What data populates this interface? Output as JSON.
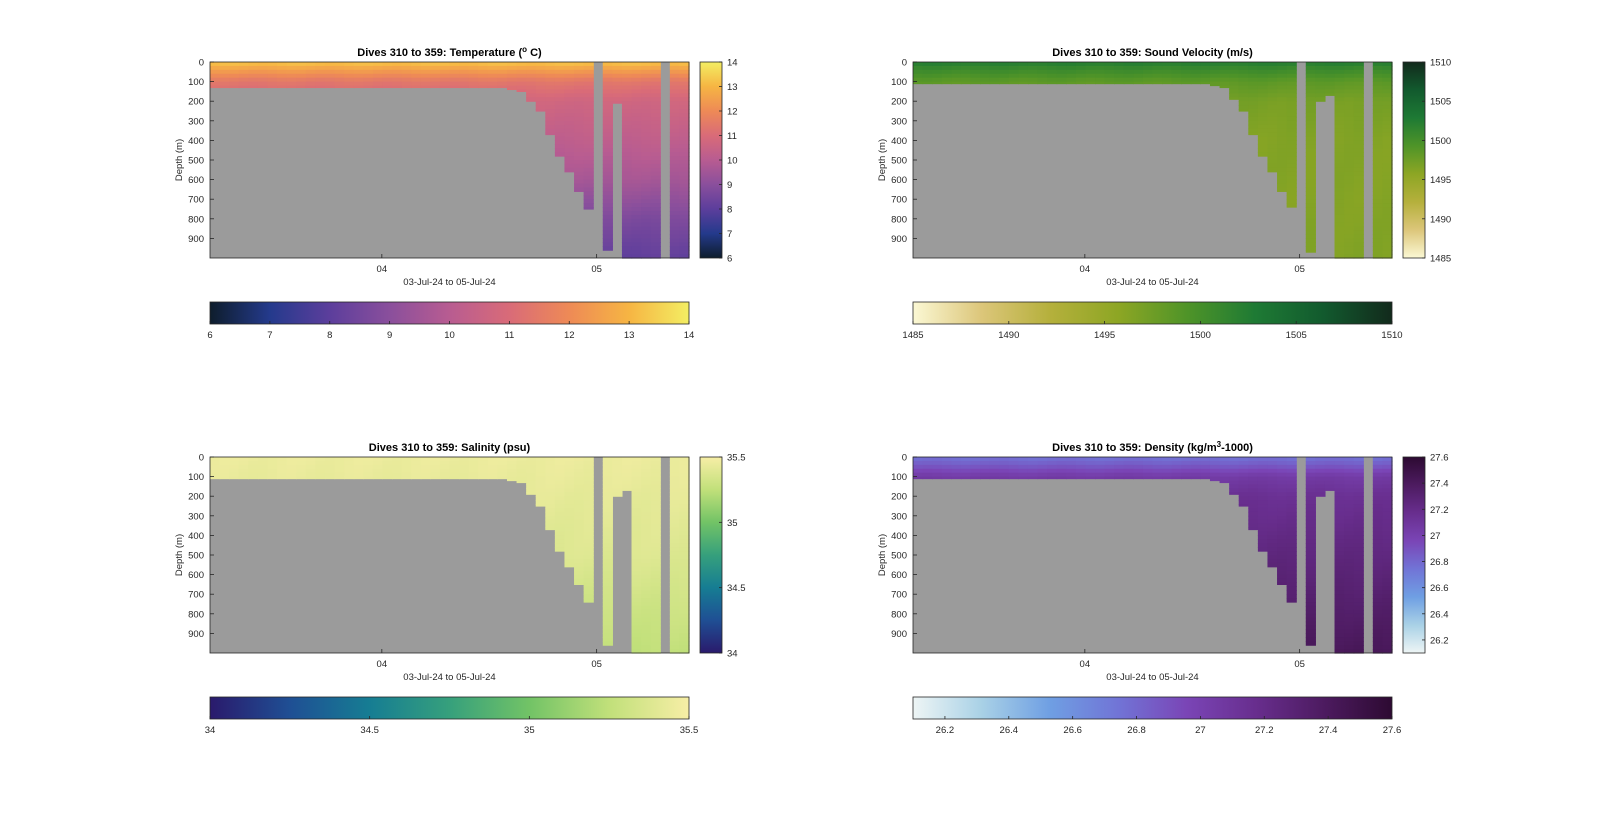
{
  "figure_title": "",
  "no_data_color": "#9b9b9b",
  "chart_data": [
    {
      "type": "heatmap",
      "title": "Dives 310 to 359: Temperature (° C)",
      "title_main": "Dives 310 to 359: Temperature (",
      "title_sup": "o",
      "title_tail": " C)",
      "xlabel": "03-Jul-24 to 05-Jul-24",
      "ylabel": "Depth (m)",
      "ylim": [
        0,
        1000
      ],
      "y_reversed": true,
      "y_ticks": [
        0,
        100,
        200,
        300,
        400,
        500,
        600,
        700,
        800,
        900
      ],
      "x_range_days": [
        3.2,
        5.43
      ],
      "x_ticks": [
        {
          "value": 4.0,
          "label": "04"
        },
        {
          "value": 5.0,
          "label": "05"
        }
      ],
      "n_profiles": 50,
      "max_depth_by_profile": [
        130,
        130,
        130,
        130,
        130,
        130,
        130,
        130,
        130,
        130,
        130,
        130,
        130,
        130,
        130,
        130,
        130,
        130,
        130,
        130,
        130,
        130,
        130,
        130,
        130,
        130,
        130,
        130,
        130,
        130,
        130,
        140,
        150,
        200,
        250,
        370,
        480,
        560,
        660,
        750,
        0,
        960,
        210,
        1000,
        1000,
        1000,
        1000,
        0,
        1000,
        1000
      ],
      "colorbar": {
        "min": 6,
        "max": 14,
        "ticks": [
          6,
          7,
          8,
          9,
          10,
          11,
          12,
          13,
          14
        ],
        "horizontal_ticks": [
          6,
          7,
          8,
          9,
          10,
          11,
          12,
          13,
          14
        ]
      },
      "colormap": [
        "#0e1d2c",
        "#243a8c",
        "#5c3e9c",
        "#8a4f9c",
        "#b85c91",
        "#d96b78",
        "#ee8a56",
        "#f6b543",
        "#f3ee63"
      ],
      "profile": {
        "depths": [
          0,
          40,
          100,
          200,
          400,
          600,
          800,
          1000
        ],
        "values": [
          13.3,
          12.5,
          11.4,
          10.7,
          10.2,
          9.6,
          8.7,
          8.1
        ]
      }
    },
    {
      "type": "heatmap",
      "title": "Dives 310 to 359: Sound Velocity (m/s)",
      "title_main": "Dives 310 to 359: Sound Velocity (m/s)",
      "title_sup": "",
      "title_tail": "",
      "xlabel": "03-Jul-24 to 05-Jul-24",
      "ylabel": "Depth (m)",
      "ylim": [
        0,
        1000
      ],
      "y_reversed": true,
      "y_ticks": [
        0,
        100,
        200,
        300,
        400,
        500,
        600,
        700,
        800,
        900
      ],
      "x_range_days": [
        3.2,
        5.43
      ],
      "x_ticks": [
        {
          "value": 4.0,
          "label": "04"
        },
        {
          "value": 5.0,
          "label": "05"
        }
      ],
      "n_profiles": 50,
      "max_depth_by_profile": [
        110,
        110,
        110,
        110,
        110,
        110,
        110,
        110,
        110,
        110,
        110,
        110,
        110,
        110,
        110,
        110,
        110,
        110,
        110,
        110,
        110,
        110,
        110,
        110,
        110,
        110,
        110,
        110,
        110,
        110,
        110,
        120,
        130,
        190,
        250,
        370,
        480,
        560,
        660,
        740,
        0,
        970,
        200,
        170,
        1000,
        1000,
        1000,
        0,
        1000,
        1000
      ],
      "colorbar": {
        "min": 1485,
        "max": 1510,
        "ticks": [
          1485,
          1490,
          1495,
          1500,
          1505,
          1510
        ],
        "horizontal_ticks": [
          1485,
          1490,
          1495,
          1500,
          1505,
          1510
        ]
      },
      "colormap": [
        "#fbf8d4",
        "#dcc67a",
        "#b5b03c",
        "#8da624",
        "#4f9428",
        "#1e7a34",
        "#125a2e",
        "#122a1c"
      ],
      "profile": {
        "depths": [
          0,
          30,
          100,
          200,
          400,
          700,
          1000
        ],
        "values": [
          1502.5,
          1501,
          1498.5,
          1497,
          1496.3,
          1496.2,
          1496.4
        ]
      }
    },
    {
      "type": "heatmap",
      "title": "Dives 310 to 359: Salinity (psu)",
      "title_main": "Dives 310 to 359: Salinity (psu)",
      "title_sup": "",
      "title_tail": "",
      "xlabel": "03-Jul-24 to 05-Jul-24",
      "ylabel": "Depth (m)",
      "ylim": [
        0,
        1000
      ],
      "y_reversed": true,
      "y_ticks": [
        0,
        100,
        200,
        300,
        400,
        500,
        600,
        700,
        800,
        900
      ],
      "x_range_days": [
        3.2,
        5.43
      ],
      "x_ticks": [
        {
          "value": 4.0,
          "label": "04"
        },
        {
          "value": 5.0,
          "label": "05"
        }
      ],
      "n_profiles": 50,
      "max_depth_by_profile": [
        110,
        110,
        110,
        110,
        110,
        110,
        110,
        110,
        110,
        110,
        110,
        110,
        110,
        110,
        110,
        110,
        110,
        110,
        110,
        110,
        110,
        110,
        110,
        110,
        110,
        110,
        110,
        110,
        110,
        110,
        110,
        120,
        130,
        190,
        250,
        370,
        480,
        560,
        650,
        740,
        0,
        960,
        200,
        170,
        1000,
        1000,
        1000,
        0,
        1000,
        1000
      ],
      "colorbar": {
        "min": 34,
        "max": 35.5,
        "ticks": [
          34,
          34.5,
          35,
          35.5
        ],
        "horizontal_ticks": [
          34,
          34.5,
          35,
          35.5
        ]
      },
      "colormap": [
        "#2a1a6c",
        "#1f4f94",
        "#167d93",
        "#36a07c",
        "#72c366",
        "#c1e07a",
        "#f7eea6"
      ],
      "profile": {
        "depths": [
          0,
          200,
          500,
          800,
          1000
        ],
        "values": [
          35.45,
          35.42,
          35.38,
          35.3,
          35.25
        ]
      }
    },
    {
      "type": "heatmap",
      "title": "Dives 310 to 359: Density (kg/m³-1000)",
      "title_main": "Dives 310 to 359: Density (kg/m",
      "title_sup": "3",
      "title_tail": "-1000)",
      "xlabel": "03-Jul-24 to 05-Jul-24",
      "ylabel": "Depth (m)",
      "ylim": [
        0,
        1000
      ],
      "y_reversed": true,
      "y_ticks": [
        0,
        100,
        200,
        300,
        400,
        500,
        600,
        700,
        800,
        900
      ],
      "x_range_days": [
        3.2,
        5.43
      ],
      "x_ticks": [
        {
          "value": 4.0,
          "label": "04"
        },
        {
          "value": 5.0,
          "label": "05"
        }
      ],
      "n_profiles": 50,
      "max_depth_by_profile": [
        110,
        110,
        110,
        110,
        110,
        110,
        110,
        110,
        110,
        110,
        110,
        110,
        110,
        110,
        110,
        110,
        110,
        110,
        110,
        110,
        110,
        110,
        110,
        110,
        110,
        110,
        110,
        110,
        110,
        110,
        110,
        120,
        130,
        190,
        250,
        370,
        480,
        560,
        650,
        740,
        0,
        960,
        200,
        170,
        1000,
        1000,
        1000,
        0,
        1000,
        1000
      ],
      "colorbar": {
        "min": 26.1,
        "max": 27.6,
        "ticks": [
          26.2,
          26.4,
          26.6,
          26.8,
          27,
          27.2,
          27.4,
          27.6
        ],
        "horizontal_ticks": [
          26.2,
          26.4,
          26.6,
          26.8,
          27,
          27.2,
          27.4,
          27.6
        ]
      },
      "colormap": [
        "#eef5f5",
        "#a9d1e6",
        "#6f9fe3",
        "#7174d6",
        "#7a45b6",
        "#682e8e",
        "#4d1b60",
        "#2d0a32"
      ],
      "profile": {
        "depths": [
          0,
          40,
          100,
          200,
          500,
          800,
          1000
        ],
        "values": [
          26.75,
          26.85,
          27.05,
          27.15,
          27.25,
          27.35,
          27.42
        ]
      }
    }
  ]
}
